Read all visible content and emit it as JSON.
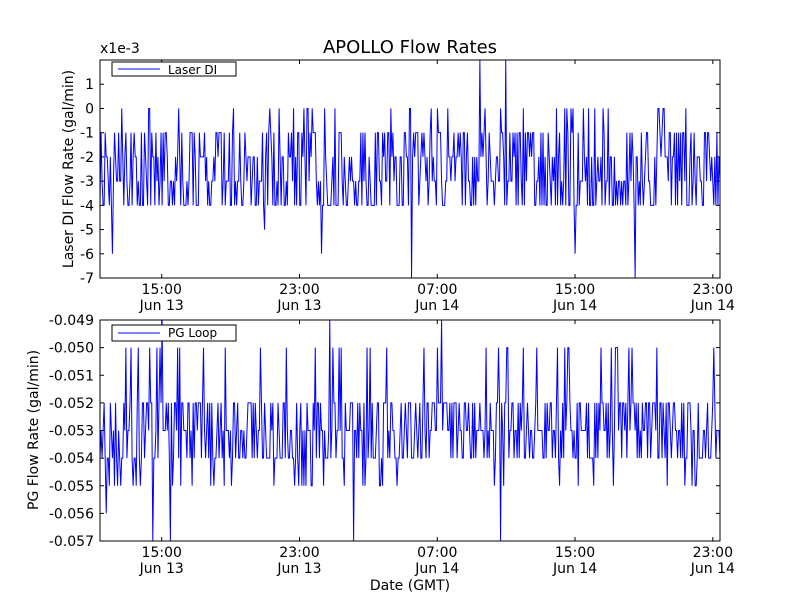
{
  "chart_data": [
    {
      "type": "line",
      "title": "APOLLO Flow Rates",
      "ylabel": "Laser DI Flow Rate (gal/min)",
      "xlabel": "",
      "y_multiplier": "x1e-3",
      "ylim": [
        -7,
        2
      ],
      "yticks": [
        1,
        0,
        -1,
        -2,
        -3,
        -4,
        -5,
        -6,
        -7
      ],
      "ytick_labels": [
        "1",
        "0",
        "-1",
        "-2",
        "-3",
        "-4",
        "-5",
        "-6",
        "-7"
      ],
      "xticks": [
        {
          "time": "15:00",
          "date": "Jun 13"
        },
        {
          "time": "23:00",
          "date": "Jun 13"
        },
        {
          "time": "07:00",
          "date": "Jun 14"
        },
        {
          "time": "15:00",
          "date": "Jun 14"
        },
        {
          "time": "23:00",
          "date": "Jun 14"
        }
      ],
      "xlim": [
        "Jun 13 11:25",
        "Jun 14 23:25"
      ],
      "legend": {
        "placement": "top-left",
        "entries": [
          "Laser DI"
        ]
      },
      "grid": false,
      "series": [
        {
          "name": "Laser DI",
          "color": "#0000ff",
          "x_start": "Jun 13 11:25",
          "x_end": "Jun 14 23:25",
          "sample_count": 600,
          "value_levels": [
            -4,
            -3,
            -2,
            -1,
            0
          ],
          "typical_range": [
            -4,
            -1
          ],
          "spikes": [
            {
              "time": "Jun 13 12:10",
              "value": -6
            },
            {
              "time": "Jun 13 21:00",
              "value": -5
            },
            {
              "time": "Jun 14 00:15",
              "value": -6
            },
            {
              "time": "Jun 14 05:30",
              "value": -7
            },
            {
              "time": "Jun 14 09:30",
              "value": 2
            },
            {
              "time": "Jun 14 11:00",
              "value": 2
            },
            {
              "time": "Jun 14 15:00",
              "value": -6
            },
            {
              "time": "Jun 14 18:30",
              "value": -7
            }
          ]
        }
      ]
    },
    {
      "type": "line",
      "title": "",
      "ylabel": "PG Flow Rate (gal/min)",
      "xlabel": "Date (GMT)",
      "ylim": [
        -0.057,
        -0.049
      ],
      "yticks": [
        -0.049,
        -0.05,
        -0.051,
        -0.052,
        -0.053,
        -0.054,
        -0.055,
        -0.056,
        -0.057
      ],
      "ytick_labels": [
        "-0.049",
        "-0.050",
        "-0.051",
        "-0.052",
        "-0.053",
        "-0.054",
        "-0.055",
        "-0.056",
        "-0.057"
      ],
      "xticks": [
        {
          "time": "15:00",
          "date": "Jun 13"
        },
        {
          "time": "23:00",
          "date": "Jun 13"
        },
        {
          "time": "07:00",
          "date": "Jun 14"
        },
        {
          "time": "15:00",
          "date": "Jun 14"
        },
        {
          "time": "23:00",
          "date": "Jun 14"
        }
      ],
      "xlim": [
        "Jun 13 11:25",
        "Jun 14 23:25"
      ],
      "legend": {
        "placement": "top-left",
        "entries": [
          "PG Loop"
        ]
      },
      "grid": false,
      "series": [
        {
          "name": "PG Loop",
          "color": "#0000ff",
          "x_start": "Jun 13 11:25",
          "x_end": "Jun 14 23:25",
          "sample_count": 600,
          "value_levels": [
            -0.055,
            -0.054,
            -0.053,
            -0.052,
            -0.051,
            -0.05
          ],
          "typical_range": [
            -0.054,
            -0.052
          ],
          "spikes": [
            {
              "time": "Jun 13 11:45",
              "value": -0.056
            },
            {
              "time": "Jun 13 14:30",
              "value": -0.057
            },
            {
              "time": "Jun 13 15:00",
              "value": -0.049
            },
            {
              "time": "Jun 13 15:30",
              "value": -0.057
            },
            {
              "time": "Jun 14 00:45",
              "value": -0.049
            },
            {
              "time": "Jun 14 02:10",
              "value": -0.057
            },
            {
              "time": "Jun 14 10:40",
              "value": -0.057
            },
            {
              "time": "Jun 14 07:15",
              "value": -0.049
            }
          ]
        }
      ]
    }
  ]
}
